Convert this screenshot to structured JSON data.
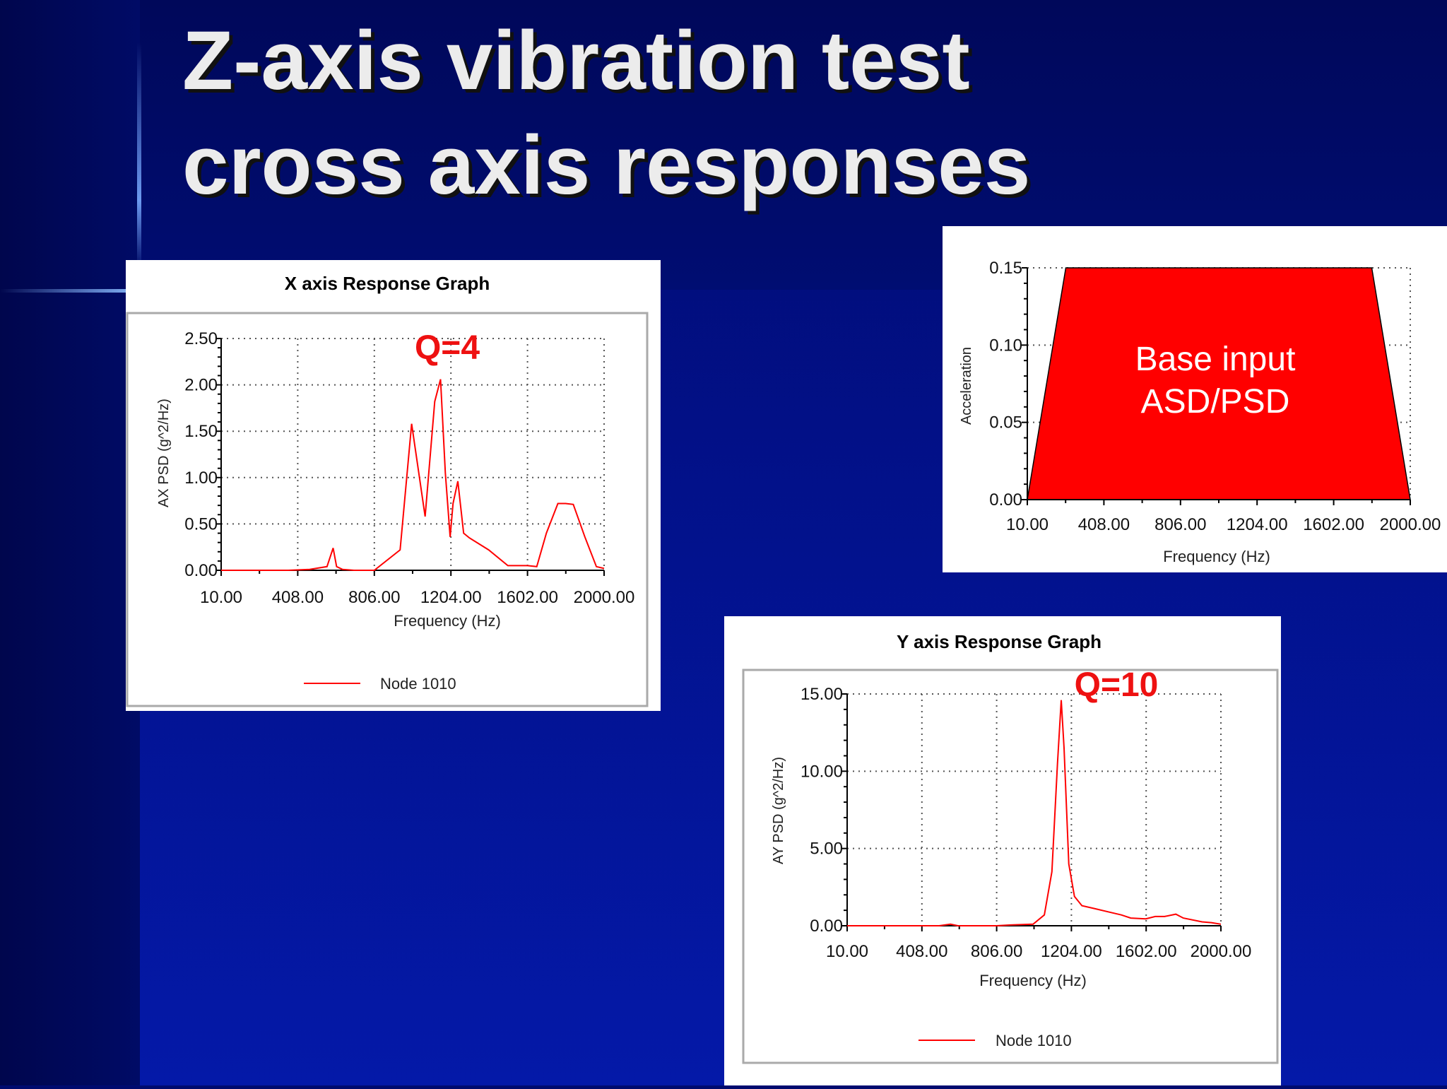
{
  "slide": {
    "title_lines": [
      "Z-axis vibration test",
      "cross axis responses"
    ],
    "colors": {
      "background": "#02118a",
      "title": "#ececec",
      "curve": "#ff0000",
      "annotation": "#ee1111"
    }
  },
  "chart_data": [
    {
      "type": "line",
      "title": "X axis Response Graph",
      "xlabel": "Frequency (Hz)",
      "ylabel": "AX PSD (g^2/Hz)",
      "x_ticks": [
        "10.00",
        "408.00",
        "806.00",
        "1204.00",
        "1602.00",
        "2000.00"
      ],
      "y_ticks": [
        "0.00",
        "0.50",
        "1.00",
        "1.50",
        "2.00",
        "2.50"
      ],
      "xlim": [
        10,
        2000
      ],
      "ylim": [
        0,
        2.5
      ],
      "grid": true,
      "legend_position": "bottom",
      "annotation": "Q=4",
      "series": [
        {
          "name": "Node 1010",
          "x": [
            10,
            200,
            360,
            470,
            560,
            592,
            610,
            640,
            700,
            806,
            940,
            1000,
            1070,
            1120,
            1150,
            1175,
            1200,
            1215,
            1240,
            1270,
            1300,
            1400,
            1500,
            1602,
            1650,
            1700,
            1760,
            1800,
            1840,
            1900,
            1960,
            2000
          ],
          "y": [
            0,
            0,
            0,
            0.01,
            0.04,
            0.24,
            0.04,
            0.01,
            0,
            0,
            0.22,
            1.58,
            0.58,
            1.82,
            2.06,
            1.05,
            0.36,
            0.72,
            0.96,
            0.4,
            0.35,
            0.22,
            0.05,
            0.05,
            0.04,
            0.4,
            0.72,
            0.72,
            0.71,
            0.36,
            0.04,
            0.02
          ]
        }
      ]
    },
    {
      "type": "area",
      "title": "",
      "xlabel": "Frequency (Hz)",
      "ylabel": "Acceleration",
      "x_ticks": [
        "10.00",
        "408.00",
        "806.00",
        "1204.00",
        "1602.00",
        "2000.00"
      ],
      "y_ticks": [
        "0.00",
        "0.05",
        "0.10",
        "0.15"
      ],
      "xlim": [
        10,
        2000
      ],
      "ylim": [
        0,
        0.15
      ],
      "grid": true,
      "label_lines": [
        "Base input",
        "ASD/PSD"
      ],
      "series": [
        {
          "x": [
            10,
            210,
            1800,
            2000
          ],
          "y": [
            0,
            0.15,
            0.15,
            0
          ]
        }
      ]
    },
    {
      "type": "line",
      "title": "Y axis Response Graph",
      "xlabel": "Frequency (Hz)",
      "ylabel": "AY PSD (g^2/Hz)",
      "x_ticks": [
        "10.00",
        "408.00",
        "806.00",
        "1204.00",
        "1602.00",
        "2000.00"
      ],
      "y_ticks": [
        "0.00",
        "5.00",
        "10.00",
        "15.00"
      ],
      "xlim": [
        10,
        2000
      ],
      "ylim": [
        0,
        15
      ],
      "grid": true,
      "legend_position": "bottom",
      "annotation": "Q=10",
      "series": [
        {
          "name": "Node 1010",
          "x": [
            10,
            500,
            560,
            600,
            806,
            880,
            1000,
            1060,
            1100,
            1130,
            1150,
            1165,
            1190,
            1220,
            1260,
            1330,
            1400,
            1470,
            1520,
            1600,
            1650,
            1700,
            1760,
            1800,
            1900,
            1950,
            2000
          ],
          "y": [
            0,
            0,
            0.1,
            0,
            0,
            0.05,
            0.1,
            0.7,
            3.5,
            10.5,
            14.6,
            11.5,
            4.0,
            1.9,
            1.3,
            1.1,
            0.9,
            0.7,
            0.5,
            0.45,
            0.6,
            0.6,
            0.75,
            0.5,
            0.25,
            0.2,
            0.1
          ]
        }
      ]
    }
  ]
}
